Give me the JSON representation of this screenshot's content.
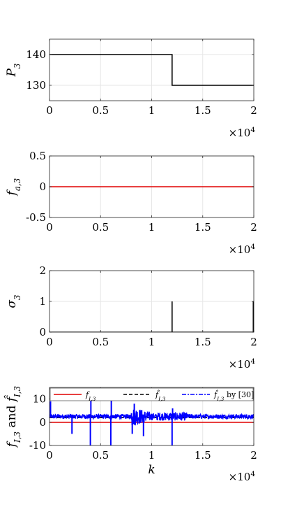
{
  "chart_data": [
    {
      "type": "line",
      "ylabel": "P_3",
      "ylabel_sym": "P",
      "ylabel_sub": "3",
      "xlim": [
        0,
        20000
      ],
      "ylim": [
        125,
        145
      ],
      "xticks": [
        0,
        5000,
        10000,
        15000,
        20000
      ],
      "xtick_labels": [
        "0",
        "0.5",
        "1",
        "1.5",
        "2"
      ],
      "yticks": [
        130,
        140
      ],
      "ytick_labels": [
        "130",
        "140"
      ],
      "x_multiplier": "×10^4",
      "grid": true,
      "series": [
        {
          "color": "#000000",
          "style": "solid",
          "points": [
            [
              0,
              140
            ],
            [
              12000,
              140
            ],
            [
              12000,
              130
            ],
            [
              20000,
              130
            ]
          ]
        }
      ]
    },
    {
      "type": "line",
      "ylabel": "f_a,3",
      "ylabel_sym": "f",
      "ylabel_sub": "a,3",
      "xlim": [
        0,
        20000
      ],
      "ylim": [
        -0.5,
        0.5
      ],
      "xticks": [
        0,
        5000,
        10000,
        15000,
        20000
      ],
      "xtick_labels": [
        "0",
        "0.5",
        "1",
        "1.5",
        "2"
      ],
      "yticks": [
        -0.5,
        0,
        0.5
      ],
      "ytick_labels": [
        "-0.5",
        "0",
        "0.5"
      ],
      "x_multiplier": "×10^4",
      "grid": true,
      "series": [
        {
          "color": "#e00000",
          "style": "solid",
          "points": [
            [
              0,
              0
            ],
            [
              20000,
              0
            ]
          ]
        }
      ]
    },
    {
      "type": "line",
      "ylabel": "σ_3",
      "ylabel_sym": "σ",
      "ylabel_sub": "3",
      "xlim": [
        0,
        20000
      ],
      "ylim": [
        0,
        2
      ],
      "xticks": [
        0,
        5000,
        10000,
        15000,
        20000
      ],
      "xtick_labels": [
        "0",
        "0.5",
        "1",
        "1.5",
        "2"
      ],
      "yticks": [
        0,
        1,
        2
      ],
      "ytick_labels": [
        "0",
        "1",
        "2"
      ],
      "x_multiplier": "×10^4",
      "grid": true,
      "series": [
        {
          "color": "#000000",
          "style": "solid",
          "points": [
            [
              0,
              0
            ],
            [
              12000,
              0
            ],
            [
              12000,
              1
            ],
            [
              12000,
              0
            ],
            [
              19950,
              0
            ],
            [
              19950,
              1
            ],
            [
              19950,
              0
            ],
            [
              20000,
              0
            ]
          ]
        }
      ]
    },
    {
      "type": "line",
      "ylabel": "f_I,3 and f̂_I,3",
      "ylabel_sym": "f",
      "ylabel_sub": "I,3",
      "ylabel_mid": " and ",
      "ylabel_sym2": "f̂",
      "ylabel_sub2": "I,3",
      "xlabel": "k",
      "xlim": [
        0,
        20000
      ],
      "ylim": [
        -10,
        15
      ],
      "xticks": [
        0,
        5000,
        10000,
        15000,
        20000
      ],
      "xtick_labels": [
        "0",
        "0.5",
        "1",
        "1.5",
        "2"
      ],
      "yticks": [
        -10,
        0,
        10
      ],
      "ytick_labels": [
        "-10",
        "0",
        "10"
      ],
      "x_multiplier": "×10^4",
      "grid": true,
      "legend": {
        "placement": "top",
        "entries": [
          {
            "label": "f_I,3",
            "sym": "f",
            "sub": "I,3",
            "suffix": "",
            "color": "#e00000",
            "style": "solid"
          },
          {
            "label": "f̂_I,3",
            "sym": "f̂",
            "sub": "I,3",
            "suffix": "",
            "color": "#000000",
            "style": "dashed"
          },
          {
            "label": "f̂_I,3 by [30]",
            "sym": "f̂",
            "sub": "I,3",
            "suffix": " by [30]",
            "color": "#0000ff",
            "style": "dashdot"
          }
        ]
      },
      "series": [
        {
          "name": "f_I,3",
          "color": "#e00000",
          "style": "solid",
          "points": [
            [
              0,
              0
            ],
            [
              20000,
              0
            ]
          ]
        },
        {
          "name": "f̂_I,3",
          "color": "#000000",
          "style": "dashed",
          "points": [
            [
              0,
              2
            ],
            [
              20000,
              2
            ]
          ]
        },
        {
          "name": "f̂_I,3 by [30]",
          "color": "#0000ff",
          "style": "noisy",
          "baseline": 2.5,
          "noise_amplitude": 1.0,
          "burst_region": [
            8000,
            10500
          ],
          "burst_amplitude": 4.5,
          "spikes": [
            {
              "x": 100,
              "y": 9
            },
            {
              "x": 2200,
              "y": -5
            },
            {
              "x": 4000,
              "y": -10
            },
            {
              "x": 4050,
              "y": 10
            },
            {
              "x": 6000,
              "y": -10
            },
            {
              "x": 6050,
              "y": 10
            },
            {
              "x": 8100,
              "y": -5
            },
            {
              "x": 8300,
              "y": 8
            },
            {
              "x": 9200,
              "y": -6
            },
            {
              "x": 12000,
              "y": -10
            },
            {
              "x": 12050,
              "y": 6
            }
          ]
        }
      ]
    }
  ]
}
